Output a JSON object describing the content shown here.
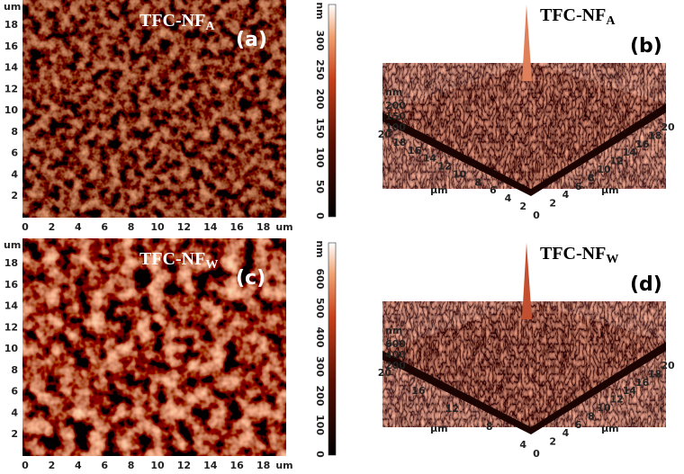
{
  "panels": [
    {
      "kind": "map",
      "title": "TFC-NF",
      "subscript": "A",
      "label": "(a)",
      "x_ticks": [
        0,
        2,
        4,
        6,
        8,
        10,
        12,
        14,
        16,
        18
      ],
      "x_unit": "um",
      "y_ticks": [
        2,
        4,
        6,
        8,
        10,
        12,
        14,
        16,
        18
      ],
      "y_unit": "um"
    },
    {
      "kind": "surface",
      "title": "TFC-NF",
      "subscript": "A",
      "label": "(b)",
      "colorbar_unit": "nm",
      "colorbar_ticks": [
        0,
        50,
        100,
        150,
        200,
        250,
        300
      ],
      "z_unit": "nm",
      "z_ticks": [
        200,
        150,
        100
      ],
      "left_ticks": [
        20,
        18,
        16,
        14,
        12,
        10,
        8,
        6,
        4,
        2
      ],
      "left_unit": "µm",
      "origin": "0",
      "right_ticks": [
        2,
        4,
        6,
        8,
        10,
        12,
        14,
        16,
        18,
        20
      ],
      "right_unit": "µm"
    },
    {
      "kind": "map",
      "title": "TFC-NF",
      "subscript": "W",
      "label": "(c)",
      "x_ticks": [
        0,
        2,
        4,
        6,
        8,
        10,
        12,
        14,
        16,
        18
      ],
      "x_unit": "um",
      "y_ticks": [
        2,
        4,
        6,
        8,
        10,
        12,
        14,
        16,
        18
      ],
      "y_unit": "um"
    },
    {
      "kind": "surface",
      "title": "TFC-NF",
      "subscript": "W",
      "label": "(d)",
      "colorbar_unit": "nm",
      "colorbar_ticks": [
        0,
        100,
        200,
        300,
        400,
        500,
        600
      ],
      "z_unit": "nm",
      "z_ticks": [
        600,
        400,
        200
      ],
      "left_ticks": [
        20,
        16,
        12,
        8,
        4
      ],
      "left_unit": "µm",
      "origin": "0",
      "right_ticks": [
        2,
        4,
        6,
        8,
        10,
        12,
        14,
        16,
        18,
        20
      ],
      "right_unit": "µm"
    }
  ]
}
